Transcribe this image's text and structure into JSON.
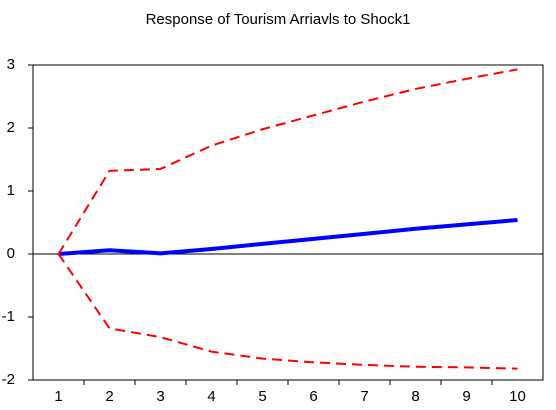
{
  "chart_data": {
    "type": "line",
    "title": "Response of Tourism Arriavls to Shock1",
    "categories": [
      "1",
      "2",
      "3",
      "4",
      "5",
      "6",
      "7",
      "8",
      "9",
      "10"
    ],
    "series": [
      {
        "color": "#0000ff",
        "style": "solid",
        "values": [
          0,
          0.06,
          0.01,
          0.08,
          0.16,
          0.24,
          0.32,
          0.4,
          0.47,
          0.54
        ]
      },
      {
        "color": "#ff0000",
        "style": "dashed",
        "values": [
          0,
          1.32,
          1.35,
          1.72,
          1.98,
          2.2,
          2.42,
          2.62,
          2.78,
          2.93
        ]
      },
      {
        "color": "#ff0000",
        "style": "dashed",
        "values": [
          0,
          -1.18,
          -1.32,
          -1.55,
          -1.66,
          -1.72,
          -1.76,
          -1.79,
          -1.8,
          -1.82
        ]
      }
    ],
    "ylim": [
      -2,
      3
    ],
    "yticks": [
      -2,
      -1,
      0,
      1,
      2,
      3
    ],
    "zero_line": true,
    "grid": false
  }
}
